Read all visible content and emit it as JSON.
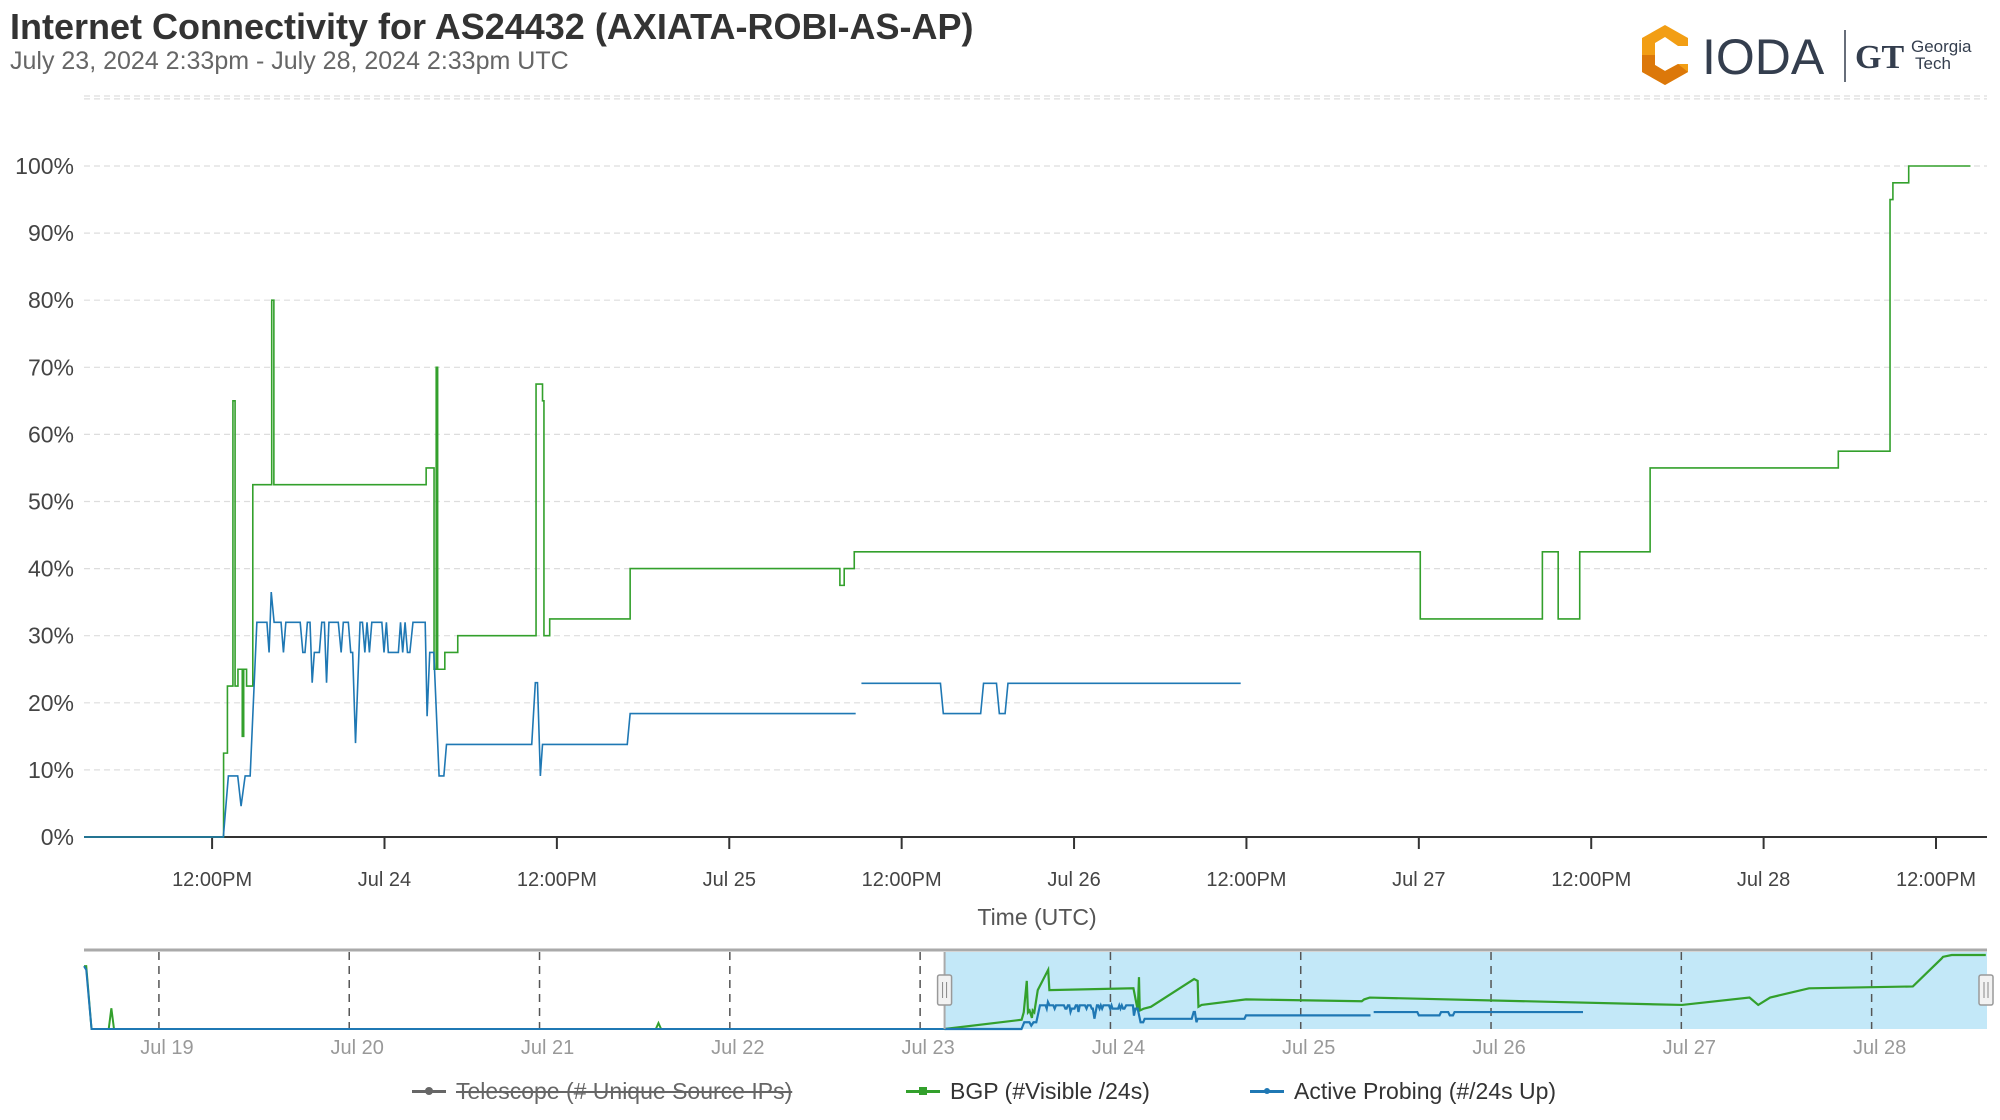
{
  "header": {
    "title": "Internet Connectivity for AS24432 (AXIATA-ROBI-AS-AP)",
    "subtitle": "July 23, 2024 2:33pm - July 28, 2024 2:33pm UTC",
    "logo_text": "IODA",
    "partner_logo_text": "GT Georgia Tech"
  },
  "chart_data": {
    "type": "line",
    "title": "Internet Connectivity for AS24432 (AXIATA-ROBI-AS-AP)",
    "xlabel": "Time (UTC)",
    "ylabel": "",
    "xlim": [
      "2024-07-23 03:05",
      "2024-07-28 15:33"
    ],
    "ylim": [
      0,
      110
    ],
    "grid": true,
    "legend_position": "bottom",
    "y_ticks": [
      "0%",
      "10%",
      "20%",
      "30%",
      "40%",
      "50%",
      "60%",
      "70%",
      "80%",
      "90%",
      "100%"
    ],
    "x_ticks": [
      {
        "t": "2024-07-23 12:00",
        "label": "12:00PM"
      },
      {
        "t": "2024-07-24 00:00",
        "label": "Jul 24"
      },
      {
        "t": "2024-07-24 12:00",
        "label": "12:00PM"
      },
      {
        "t": "2024-07-25 00:00",
        "label": "Jul 25"
      },
      {
        "t": "2024-07-25 12:00",
        "label": "12:00PM"
      },
      {
        "t": "2024-07-26 00:00",
        "label": "Jul 26"
      },
      {
        "t": "2024-07-26 12:00",
        "label": "12:00PM"
      },
      {
        "t": "2024-07-27 00:00",
        "label": "Jul 27"
      },
      {
        "t": "2024-07-27 12:00",
        "label": "12:00PM"
      },
      {
        "t": "2024-07-28 00:00",
        "label": "Jul 28"
      },
      {
        "t": "2024-07-28 12:00",
        "label": "12:00PM"
      }
    ],
    "series": [
      {
        "name": "Telescope (# Unique Source IPs)",
        "color": "#666666",
        "visible": false,
        "points": []
      },
      {
        "name": "BGP (#Visible /24s)",
        "color": "#33a02c",
        "visible": true,
        "interpolation": "step",
        "points": [
          [
            "2024-07-23 03:05",
            0
          ],
          [
            "2024-07-23 12:48",
            12.5
          ],
          [
            "2024-07-23 13:04",
            22.5
          ],
          [
            "2024-07-23 13:27",
            65
          ],
          [
            "2024-07-23 13:36",
            22.5
          ],
          [
            "2024-07-23 13:48",
            25
          ],
          [
            "2024-07-23 14:06",
            15
          ],
          [
            "2024-07-23 14:12",
            25
          ],
          [
            "2024-07-23 14:24",
            22.5
          ],
          [
            "2024-07-23 14:50",
            52.5
          ],
          [
            "2024-07-23 16:09",
            80
          ],
          [
            "2024-07-23 16:18",
            52.5
          ],
          [
            "2024-07-24 02:54",
            55
          ],
          [
            "2024-07-24 03:27",
            25
          ],
          [
            "2024-07-24 03:36",
            70
          ],
          [
            "2024-07-24 03:42",
            25
          ],
          [
            "2024-07-24 04:12",
            27.5
          ],
          [
            "2024-07-24 05:06",
            30
          ],
          [
            "2024-07-24 10:33",
            67.5
          ],
          [
            "2024-07-24 11:00",
            65
          ],
          [
            "2024-07-24 11:06",
            30
          ],
          [
            "2024-07-24 11:30",
            32.5
          ],
          [
            "2024-07-24 17:06",
            40
          ],
          [
            "2024-07-25 07:42",
            37.5
          ],
          [
            "2024-07-25 08:00",
            40
          ],
          [
            "2024-07-25 08:42",
            42.5
          ],
          [
            "2024-07-27 00:06",
            32.5
          ],
          [
            "2024-07-27 08:36",
            42.5
          ],
          [
            "2024-07-27 09:42",
            32.5
          ],
          [
            "2024-07-27 11:12",
            42.5
          ],
          [
            "2024-07-27 16:06",
            55
          ],
          [
            "2024-07-28 05:12",
            57.5
          ],
          [
            "2024-07-28 08:48",
            95
          ],
          [
            "2024-07-28 09:00",
            97.5
          ],
          [
            "2024-07-28 10:06",
            100
          ],
          [
            "2024-07-28 14:24",
            100
          ]
        ]
      },
      {
        "name": "Active Probing (#/24s Up)",
        "color": "#1f78b4",
        "visible": true,
        "interpolation": "linear",
        "points": [
          [
            "2024-07-23 03:05",
            0
          ],
          [
            "2024-07-23 12:47",
            0
          ],
          [
            "2024-07-23 13:08",
            9.1
          ],
          [
            "2024-07-23 13:47",
            9.1
          ],
          [
            "2024-07-23 14:01",
            4.6
          ],
          [
            "2024-07-23 14:18",
            9.1
          ],
          [
            "2024-07-23 14:39",
            9.1
          ],
          [
            "2024-07-23 15:07",
            32
          ],
          [
            "2024-07-23 15:49",
            32
          ],
          [
            "2024-07-23 15:58",
            27.5
          ],
          [
            "2024-07-23 16:07",
            36.5
          ],
          [
            "2024-07-23 16:19",
            32
          ],
          [
            "2024-07-23 16:48",
            32
          ],
          [
            "2024-07-23 16:58",
            27.5
          ],
          [
            "2024-07-23 17:08",
            32
          ],
          [
            "2024-07-23 18:08",
            32
          ],
          [
            "2024-07-23 18:19",
            27.5
          ],
          [
            "2024-07-23 18:28",
            27.5
          ],
          [
            "2024-07-23 18:38",
            32
          ],
          [
            "2024-07-23 18:49",
            32
          ],
          [
            "2024-07-23 18:58",
            23
          ],
          [
            "2024-07-23 19:07",
            27.5
          ],
          [
            "2024-07-23 19:28",
            27.5
          ],
          [
            "2024-07-23 19:38",
            32
          ],
          [
            "2024-07-23 19:49",
            32
          ],
          [
            "2024-07-23 19:58",
            23
          ],
          [
            "2024-07-23 20:08",
            32
          ],
          [
            "2024-07-23 20:47",
            32
          ],
          [
            "2024-07-23 20:59",
            27.5
          ],
          [
            "2024-07-23 21:08",
            32
          ],
          [
            "2024-07-23 21:29",
            32
          ],
          [
            "2024-07-23 21:39",
            27.5
          ],
          [
            "2024-07-23 21:47",
            27.5
          ],
          [
            "2024-07-23 21:59",
            14
          ],
          [
            "2024-07-23 22:18",
            32
          ],
          [
            "2024-07-23 22:28",
            32
          ],
          [
            "2024-07-23 22:38",
            27.5
          ],
          [
            "2024-07-23 22:47",
            32
          ],
          [
            "2024-07-23 22:57",
            27.5
          ],
          [
            "2024-07-23 23:07",
            32
          ],
          [
            "2024-07-23 23:49",
            32
          ],
          [
            "2024-07-23 23:58",
            27.5
          ],
          [
            "2024-07-24 00:08",
            32
          ],
          [
            "2024-07-24 00:16",
            27.5
          ],
          [
            "2024-07-24 00:58",
            27.5
          ],
          [
            "2024-07-24 01:07",
            32
          ],
          [
            "2024-07-24 01:16",
            27.5
          ],
          [
            "2024-07-24 01:26",
            32
          ],
          [
            "2024-07-24 01:36",
            27.5
          ],
          [
            "2024-07-24 01:46",
            27.5
          ],
          [
            "2024-07-24 01:59",
            32
          ],
          [
            "2024-07-24 02:50",
            32
          ],
          [
            "2024-07-24 02:58",
            18
          ],
          [
            "2024-07-24 03:09",
            27.5
          ],
          [
            "2024-07-24 03:26",
            27.5
          ],
          [
            "2024-07-24 03:48",
            9.1
          ],
          [
            "2024-07-24 04:08",
            9.1
          ],
          [
            "2024-07-24 04:19",
            13.8
          ],
          [
            "2024-07-24 10:15",
            13.8
          ],
          [
            "2024-07-24 10:30",
            23
          ],
          [
            "2024-07-24 10:39",
            23
          ],
          [
            "2024-07-24 10:51",
            9.1
          ],
          [
            "2024-07-24 11:00",
            13.8
          ],
          [
            "2024-07-24 16:54",
            13.8
          ],
          [
            "2024-07-24 17:06",
            18.4
          ],
          [
            "2024-07-25 08:48",
            18.4
          ],
          null,
          [
            "2024-07-25 09:12",
            22.9
          ],
          [
            "2024-07-25 14:42",
            22.9
          ],
          [
            "2024-07-25 14:54",
            18.4
          ],
          [
            "2024-07-25 17:30",
            18.4
          ],
          [
            "2024-07-25 17:42",
            22.9
          ],
          [
            "2024-07-25 18:36",
            22.9
          ],
          [
            "2024-07-25 18:48",
            18.4
          ],
          [
            "2024-07-25 19:12",
            18.4
          ],
          [
            "2024-07-25 19:24",
            22.9
          ],
          [
            "2024-07-26 11:36",
            22.9
          ]
        ]
      }
    ],
    "navigator": {
      "xlim": [
        "2024-07-18 14:33",
        "2024-07-28 14:33"
      ],
      "selection": [
        "2024-07-23 03:05",
        "2024-07-28 14:33"
      ],
      "x_ticks": [
        {
          "t": "2024-07-19 00:00",
          "label": "Jul 19"
        },
        {
          "t": "2024-07-20 00:00",
          "label": "Jul 20"
        },
        {
          "t": "2024-07-21 00:00",
          "label": "Jul 21"
        },
        {
          "t": "2024-07-22 00:00",
          "label": "Jul 22"
        },
        {
          "t": "2024-07-23 00:00",
          "label": "Jul 23"
        },
        {
          "t": "2024-07-24 00:00",
          "label": "Jul 24"
        },
        {
          "t": "2024-07-25 00:00",
          "label": "Jul 25"
        },
        {
          "t": "2024-07-26 00:00",
          "label": "Jul 26"
        },
        {
          "t": "2024-07-27 00:00",
          "label": "Jul 27"
        },
        {
          "t": "2024-07-28 00:00",
          "label": "Jul 28"
        }
      ],
      "early_bgp": [
        [
          "2024-07-18 14:33",
          85
        ],
        [
          "2024-07-18 14:50",
          85
        ],
        [
          "2024-07-18 15:30",
          0
        ],
        [
          "2024-07-18 17:40",
          0
        ],
        [
          "2024-07-18 18:00",
          28
        ],
        [
          "2024-07-18 18:20",
          0
        ],
        [
          "2024-07-21 14:40",
          0
        ],
        [
          "2024-07-21 15:00",
          8
        ],
        [
          "2024-07-21 15:20",
          0
        ],
        [
          "2024-07-23 03:05",
          0
        ]
      ],
      "early_probing": [
        [
          "2024-07-18 14:33",
          85
        ],
        [
          "2024-07-18 14:50",
          80
        ],
        [
          "2024-07-18 15:30",
          0
        ],
        [
          "2024-07-23 03:05",
          0
        ]
      ]
    }
  },
  "legend": [
    {
      "label": "Telescope (# Unique Source IPs)",
      "color": "#666666",
      "hidden": true
    },
    {
      "label": "BGP (#Visible /24s)",
      "color": "#33a02c",
      "hidden": false
    },
    {
      "label": "Active Probing (#/24s Up)",
      "color": "#1f78b4",
      "hidden": false
    }
  ],
  "colors": {
    "brand_orange": "#f29e14",
    "brand_dark": "#343e4e",
    "navigator_selection": "#c3e8f8"
  }
}
